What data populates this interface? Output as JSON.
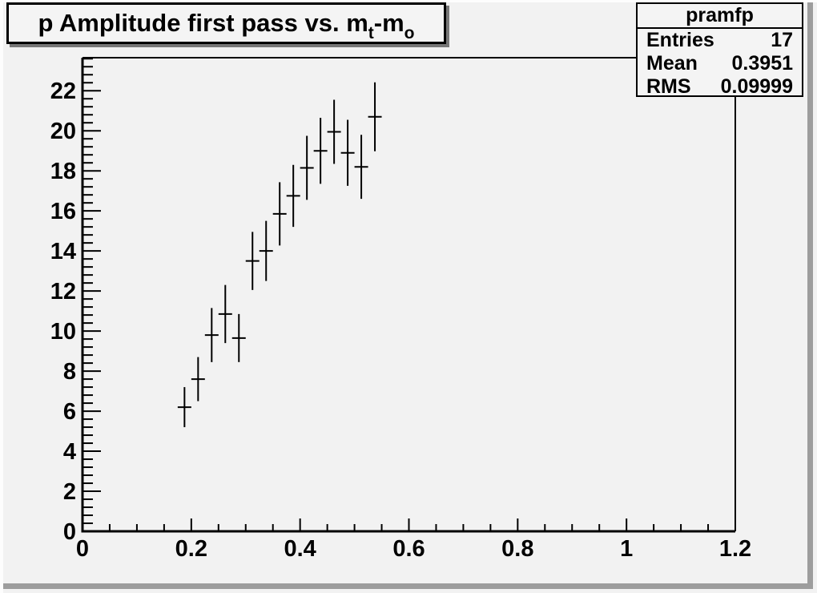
{
  "window": {
    "canvas_bg": "#f2f2f2",
    "box_bg": "#f4f4f4",
    "bevel_highlight": "#fdfdfd",
    "bevel_shadow": "#9d9d9d",
    "line_color": "#000000",
    "title_shadow": "#777777"
  },
  "title": {
    "main": "p Amplitude first pass vs. m",
    "sub1": "t",
    "mid": "-m",
    "sub2": "o",
    "full_plain": "p Amplitude first pass vs. m_t-m_o"
  },
  "stats": {
    "name": "pramfp",
    "rows": [
      {
        "label": "Entries",
        "value": "17"
      },
      {
        "label": "Mean",
        "value": "0.3951"
      },
      {
        "label": "RMS",
        "value": "0.09999"
      }
    ]
  },
  "chart_data": {
    "type": "scatter",
    "subtype": "profile-histogram-errorbars",
    "title": "p Amplitude first pass vs. m_t-m_o",
    "xlabel": "",
    "ylabel": "",
    "xlim": [
      0,
      1.2
    ],
    "ylim": [
      0,
      23.65
    ],
    "grid": false,
    "legend": false,
    "marker": "cross-error-bars",
    "color": "#000000",
    "x_major_ticks": [
      0,
      0.2,
      0.4,
      0.6,
      0.8,
      1.0,
      1.2
    ],
    "x_tick_labels": [
      "0",
      "0.2",
      "0.4",
      "0.6",
      "0.8",
      "1",
      "1.2"
    ],
    "x_minor_step": 0.05,
    "y_major_ticks": [
      0,
      2,
      4,
      6,
      8,
      10,
      12,
      14,
      16,
      18,
      20,
      22
    ],
    "y_tick_labels": [
      "0",
      "2",
      "4",
      "6",
      "8",
      "10",
      "12",
      "14",
      "16",
      "18",
      "20",
      "22"
    ],
    "y_minor_step": 0.4,
    "points": [
      {
        "x": 0.1875,
        "y": 6.2,
        "ex": 0.0125,
        "ey": 1.0
      },
      {
        "x": 0.2125,
        "y": 7.6,
        "ex": 0.0125,
        "ey": 1.1
      },
      {
        "x": 0.2375,
        "y": 9.8,
        "ex": 0.0125,
        "ey": 1.35
      },
      {
        "x": 0.2625,
        "y": 10.85,
        "ex": 0.0125,
        "ey": 1.45
      },
      {
        "x": 0.2875,
        "y": 9.65,
        "ex": 0.0125,
        "ey": 1.2
      },
      {
        "x": 0.3125,
        "y": 13.5,
        "ex": 0.0125,
        "ey": 1.45
      },
      {
        "x": 0.3375,
        "y": 14.0,
        "ex": 0.0125,
        "ey": 1.5
      },
      {
        "x": 0.3625,
        "y": 15.85,
        "ex": 0.0125,
        "ey": 1.58
      },
      {
        "x": 0.3875,
        "y": 16.75,
        "ex": 0.0125,
        "ey": 1.55
      },
      {
        "x": 0.4125,
        "y": 18.15,
        "ex": 0.0125,
        "ey": 1.6
      },
      {
        "x": 0.4375,
        "y": 19.0,
        "ex": 0.0125,
        "ey": 1.65
      },
      {
        "x": 0.4625,
        "y": 19.95,
        "ex": 0.0125,
        "ey": 1.6
      },
      {
        "x": 0.4875,
        "y": 18.9,
        "ex": 0.0125,
        "ey": 1.65
      },
      {
        "x": 0.5125,
        "y": 18.2,
        "ex": 0.0125,
        "ey": 1.6
      },
      {
        "x": 0.5375,
        "y": 20.7,
        "ex": 0.0125,
        "ey": 1.72
      }
    ]
  }
}
